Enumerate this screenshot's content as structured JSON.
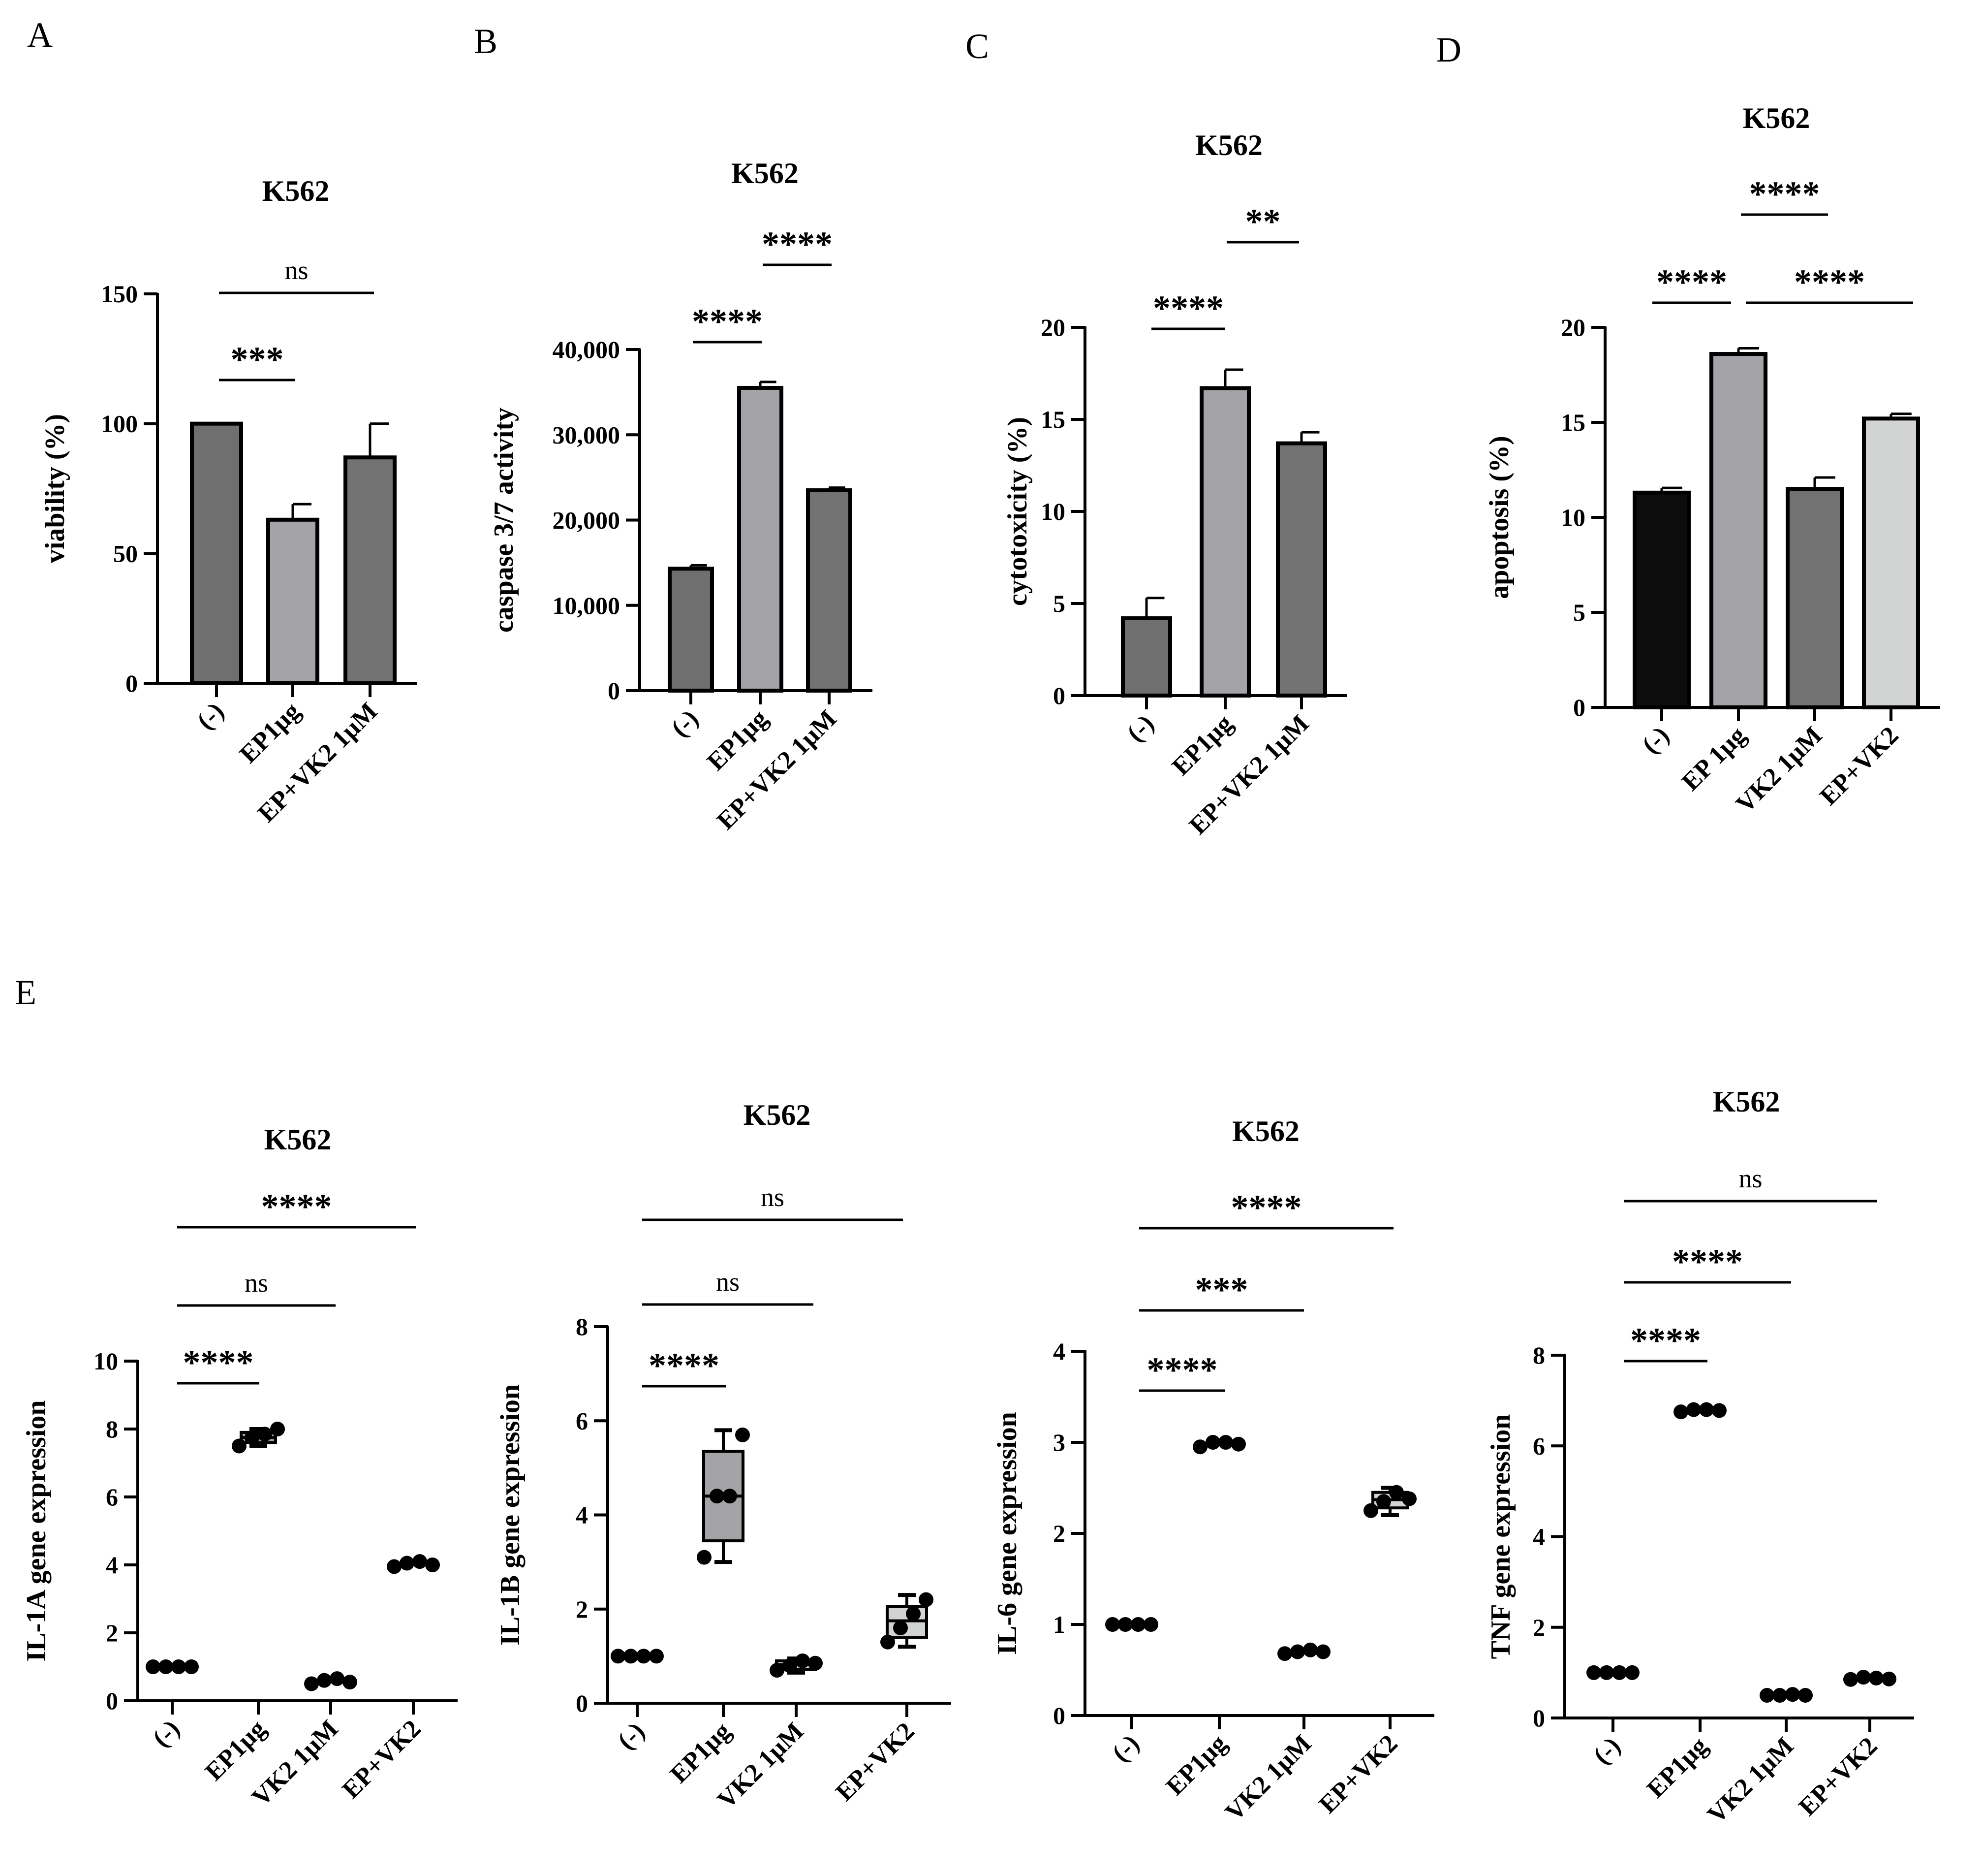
{
  "figure": {
    "panel_labels": [
      "A",
      "B",
      "C",
      "D",
      "E"
    ]
  },
  "chart_data": [
    {
      "id": "A",
      "type": "bar",
      "title": "K562",
      "ylabel": "viability (%)",
      "categories": [
        "(-)",
        "EP1µg",
        "EP+VK2 1µM"
      ],
      "values": [
        100,
        63,
        87
      ],
      "errors": [
        0,
        6,
        13
      ],
      "colors": [
        "#6f6f6f",
        "#a3a3a8",
        "#727272"
      ],
      "ylim": [
        0,
        150
      ],
      "yticks": [
        0,
        50,
        100,
        150
      ],
      "tick_labels": [
        "0",
        "50",
        "100",
        "150"
      ],
      "comparisons": [
        {
          "from": 0,
          "to": 2,
          "label": "ns"
        },
        {
          "from": 0,
          "to": 1,
          "label": "***"
        }
      ]
    },
    {
      "id": "B",
      "type": "bar",
      "title": "K562",
      "ylabel": "caspase 3/7 activity",
      "categories": [
        "(-)",
        "EP1µg",
        "EP+VK2 1µM"
      ],
      "values": [
        14300,
        35500,
        23500
      ],
      "errors": [
        400,
        700,
        300
      ],
      "colors": [
        "#6f6f6f",
        "#a3a3a8",
        "#727272"
      ],
      "ylim": [
        0,
        40000
      ],
      "yticks": [
        0,
        10000,
        20000,
        30000,
        40000
      ],
      "tick_labels": [
        "0",
        "10,000",
        "20,000",
        "30,000",
        "40,000"
      ],
      "comparisons": [
        {
          "from": 0,
          "to": 1,
          "label": "****"
        },
        {
          "from": 1,
          "to": 2,
          "label": "****"
        }
      ]
    },
    {
      "id": "C",
      "type": "bar",
      "title": "K562",
      "ylabel": "cytotoxicity (%)",
      "categories": [
        "(-)",
        "EP1µg",
        "EP+VK2 1µM"
      ],
      "values": [
        4.2,
        16.7,
        13.7
      ],
      "errors": [
        1.1,
        1.0,
        0.6
      ],
      "colors": [
        "#6f6f6f",
        "#a3a3a8",
        "#727272"
      ],
      "ylim": [
        0,
        20
      ],
      "yticks": [
        0,
        5,
        10,
        15,
        20
      ],
      "tick_labels": [
        "0",
        "5",
        "10",
        "15",
        "20"
      ],
      "comparisons": [
        {
          "from": 0,
          "to": 1,
          "label": "****"
        },
        {
          "from": 1,
          "to": 2,
          "label": "**"
        }
      ]
    },
    {
      "id": "D",
      "type": "bar",
      "title": "K562",
      "ylabel": "apoptosis (%)",
      "categories": [
        "(-)",
        "EP 1µg",
        "VK2 1µM",
        "EP+VK2"
      ],
      "values": [
        11.3,
        18.6,
        11.5,
        15.2
      ],
      "errors": [
        0.25,
        0.3,
        0.6,
        0.25
      ],
      "colors": [
        "#0d0d0d",
        "#a3a3a8",
        "#727272",
        "#d2d4d4"
      ],
      "ylim": [
        0,
        20
      ],
      "yticks": [
        0,
        5,
        10,
        15,
        20
      ],
      "tick_labels": [
        "0",
        "5",
        "10",
        "15",
        "20"
      ],
      "comparisons": [
        {
          "from": 1,
          "to": 2,
          "label": "****"
        },
        {
          "from": 0,
          "to": 1,
          "label": "****"
        },
        {
          "from": 1,
          "to": 3,
          "label": "****"
        }
      ]
    },
    {
      "id": "E1",
      "type": "box_dot",
      "title": "K562",
      "ylabel": "IL-1A gene expression",
      "categories": [
        "(-)",
        "EP1µg",
        "VK2 1µM",
        "EP+VK2"
      ],
      "points": [
        [
          1.0,
          1.0,
          1.0,
          1.0
        ],
        [
          7.5,
          7.75,
          7.85,
          8.0
        ],
        [
          0.5,
          0.6,
          0.65,
          0.55
        ],
        [
          3.95,
          4.05,
          4.1,
          4.0
        ]
      ],
      "boxes": [
        null,
        {
          "q1": 7.6,
          "median": 7.75,
          "q3": 7.9,
          "min": 7.5,
          "max": 8.0
        },
        null,
        null
      ],
      "ylim": [
        0,
        10
      ],
      "yticks": [
        0,
        2,
        4,
        6,
        8,
        10
      ],
      "tick_labels": [
        "0",
        "2",
        "4",
        "6",
        "8",
        "10"
      ],
      "comparisons": [
        {
          "from": 0,
          "to": 3,
          "label": "****"
        },
        {
          "from": 0,
          "to": 2,
          "label": "ns"
        },
        {
          "from": 0,
          "to": 1,
          "label": "****"
        }
      ]
    },
    {
      "id": "E2",
      "type": "box_dot",
      "title": "K562",
      "ylabel": "IL-1B gene expression",
      "categories": [
        "(-)",
        "EP1µg",
        "VK2 1µM",
        "EP+VK2"
      ],
      "points": [
        [
          1.0,
          1.0,
          1.0,
          1.0
        ],
        [
          3.1,
          4.4,
          4.4,
          5.7
        ],
        [
          0.7,
          0.8,
          0.9,
          0.85
        ],
        [
          1.3,
          1.6,
          1.9,
          2.2
        ]
      ],
      "boxes": [
        null,
        {
          "q1": 3.45,
          "median": 4.4,
          "q3": 5.35,
          "min": 3.0,
          "max": 5.8
        },
        {
          "q1": 0.72,
          "median": 0.82,
          "q3": 0.9,
          "min": 0.65,
          "max": 0.95
        },
        {
          "q1": 1.4,
          "median": 1.75,
          "q3": 2.05,
          "min": 1.2,
          "max": 2.3
        }
      ],
      "ylim": [
        0,
        8
      ],
      "yticks": [
        0,
        2,
        4,
        6,
        8
      ],
      "tick_labels": [
        "0",
        "2",
        "4",
        "6",
        "8"
      ],
      "comparisons": [
        {
          "from": 0,
          "to": 3,
          "label": "ns"
        },
        {
          "from": 0,
          "to": 2,
          "label": "ns"
        },
        {
          "from": 0,
          "to": 1,
          "label": "****"
        }
      ]
    },
    {
      "id": "E3",
      "type": "box_dot",
      "title": "K562",
      "ylabel": "IL-6 gene expression",
      "categories": [
        "(-)",
        "EP1µg",
        "VK2 1µM",
        "EP+VK2"
      ],
      "points": [
        [
          1.0,
          1.0,
          1.0,
          1.0
        ],
        [
          2.95,
          3.0,
          3.0,
          2.98
        ],
        [
          0.68,
          0.7,
          0.72,
          0.7
        ],
        [
          2.25,
          2.35,
          2.45,
          2.38
        ]
      ],
      "boxes": [
        null,
        null,
        null,
        {
          "q1": 2.28,
          "median": 2.37,
          "q3": 2.45,
          "min": 2.2,
          "max": 2.5
        }
      ],
      "ylim": [
        0,
        4
      ],
      "yticks": [
        0,
        1,
        2,
        3,
        4
      ],
      "tick_labels": [
        "0",
        "1",
        "2",
        "3",
        "4"
      ],
      "comparisons": [
        {
          "from": 0,
          "to": 3,
          "label": "****"
        },
        {
          "from": 0,
          "to": 2,
          "label": "***"
        },
        {
          "from": 0,
          "to": 1,
          "label": "****"
        }
      ]
    },
    {
      "id": "E4",
      "type": "box_dot",
      "title": "K562",
      "ylabel": "TNF gene expression",
      "categories": [
        "(-)",
        "EP1µg",
        "VK2 1µM",
        "EP+VK2"
      ],
      "points": [
        [
          1.0,
          1.0,
          1.0,
          1.0
        ],
        [
          6.75,
          6.8,
          6.8,
          6.78
        ],
        [
          0.5,
          0.5,
          0.52,
          0.5
        ],
        [
          0.85,
          0.9,
          0.88,
          0.86
        ]
      ],
      "boxes": [
        null,
        null,
        null,
        null
      ],
      "ylim": [
        0,
        8
      ],
      "yticks": [
        0,
        2,
        4,
        6,
        8
      ],
      "tick_labels": [
        "0",
        "2",
        "4",
        "6",
        "8"
      ],
      "comparisons": [
        {
          "from": 0,
          "to": 3,
          "label": "ns"
        },
        {
          "from": 0,
          "to": 2,
          "label": "****"
        },
        {
          "from": 0,
          "to": 1,
          "label": "****"
        }
      ]
    }
  ]
}
